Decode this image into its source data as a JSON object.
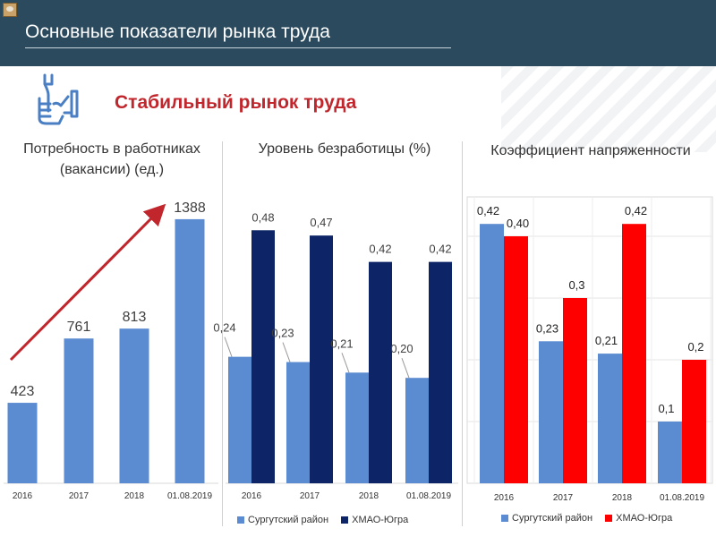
{
  "header": {
    "title": "Основные показатели рынка труда"
  },
  "subtitle": "Стабильный рынок труда",
  "icon": "wrench-hand-icon",
  "colors": {
    "header_bg": "#2b4a5e",
    "subtitle": "#c0262c",
    "series1": "#5b8bd0",
    "series2_unemp": "#0d2566",
    "series2_tension": "#ff0000",
    "arrow": "#c0262c"
  },
  "sections": {
    "vacancies": {
      "title_line1": "Потребность в работниках",
      "title_line2": "(вакансии) (ед.)"
    },
    "unemployment": {
      "title": "Уровень безработицы (%)"
    },
    "tension": {
      "title": "Коэффициент напряженности"
    }
  },
  "chart_data": [
    {
      "type": "bar",
      "title": "Потребность в работниках (вакансии) (ед.)",
      "categories": [
        "2016",
        "2017",
        "2018",
        "01.08.2019"
      ],
      "series": [
        {
          "values": [
            423,
            761,
            813,
            1388
          ]
        }
      ],
      "value_labels": [
        "423",
        "761",
        "813",
        "1388"
      ],
      "ylim": [
        0,
        1500
      ],
      "annotation": "upward-trend-arrow"
    },
    {
      "type": "bar",
      "title": "Уровень безработицы (%)",
      "categories": [
        "2016",
        "2017",
        "2018",
        "01.08.2019"
      ],
      "series": [
        {
          "name": "Сургутский район",
          "values": [
            0.24,
            0.23,
            0.21,
            0.2
          ],
          "labels": [
            "0,24",
            "0,23",
            "0,21",
            "0,20"
          ]
        },
        {
          "name": "ХМАО-Югра",
          "values": [
            0.48,
            0.47,
            0.42,
            0.42
          ],
          "labels": [
            "0,48",
            "0,47",
            "0,42",
            "0,42"
          ]
        }
      ],
      "ylim": [
        0,
        0.55
      ],
      "legend": "bottom"
    },
    {
      "type": "bar",
      "title": "Коэффициент напряженности",
      "categories": [
        "2016",
        "2017",
        "2018",
        "01.08.2019"
      ],
      "series": [
        {
          "name": "Сургутский район",
          "values": [
            0.42,
            0.23,
            0.21,
            0.1
          ],
          "labels": [
            "0,42",
            "0,23",
            "0,21",
            "0,1"
          ]
        },
        {
          "name": "ХМАО-Югра",
          "values": [
            0.4,
            0.3,
            0.42,
            0.2
          ],
          "labels": [
            "0,40",
            "0,3",
            "0,42",
            "0,2"
          ]
        }
      ],
      "ylim": [
        0,
        0.5
      ],
      "grid": true,
      "legend": "bottom"
    }
  ]
}
